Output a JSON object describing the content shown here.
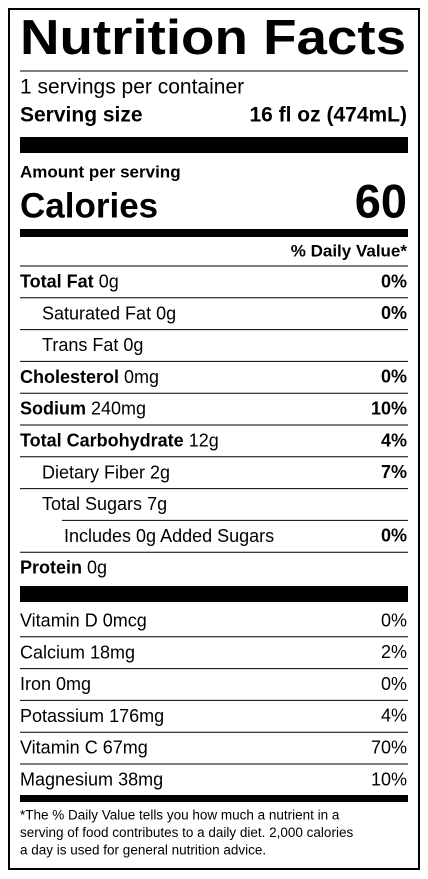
{
  "title": "Nutrition Facts",
  "servings": "1 servings per container",
  "serving_size": {
    "label": "Serving size",
    "value": "16 fl oz (474mL)"
  },
  "amount_per_serving": "Amount per serving",
  "calories": {
    "label": "Calories",
    "value": 60
  },
  "daily_value_header": "% Daily Value*",
  "nutrients": [
    {
      "name": "Total Fat",
      "amount": "0g",
      "dv": "0%"
    },
    {
      "name": "Saturated Fat",
      "amount": "0g",
      "dv": "0%"
    },
    {
      "name": "Trans Fat",
      "amount": "0g"
    },
    {
      "name": "Cholesterol",
      "amount": "0mg",
      "dv": "0%"
    },
    {
      "name": "Sodium",
      "amount": "240mg",
      "dv": "10%"
    },
    {
      "name": "Total Carbohydrate",
      "amount": "12g",
      "dv": "4%"
    },
    {
      "name": "Dietary Fiber",
      "amount": "2g",
      "dv": "7%"
    },
    {
      "name": "Total Sugars",
      "amount": "7g"
    },
    {
      "name": "Includes 0g Added Sugars",
      "dv": "0%"
    },
    {
      "name": "Protein",
      "amount": "0g"
    }
  ],
  "vitamins": [
    {
      "name": "Vitamin D",
      "amount": "0mcg",
      "dv": "0%"
    },
    {
      "name": "Calcium",
      "amount": "18mg",
      "dv": "2%"
    },
    {
      "name": "Iron",
      "amount": "0mg",
      "dv": "0%"
    },
    {
      "name": "Potassium",
      "amount": "176mg",
      "dv": "4%"
    },
    {
      "name": "Vitamin C",
      "amount": "67mg",
      "dv": "70%"
    },
    {
      "name": "Magnesium",
      "amount": "38mg",
      "dv": "10%"
    }
  ],
  "footnote": [
    "*The % Daily Value tells you how much a nutrient in a",
    "serving of food contributes to a daily diet. 2,000 calories",
    "a day is used for general nutrition advice."
  ]
}
